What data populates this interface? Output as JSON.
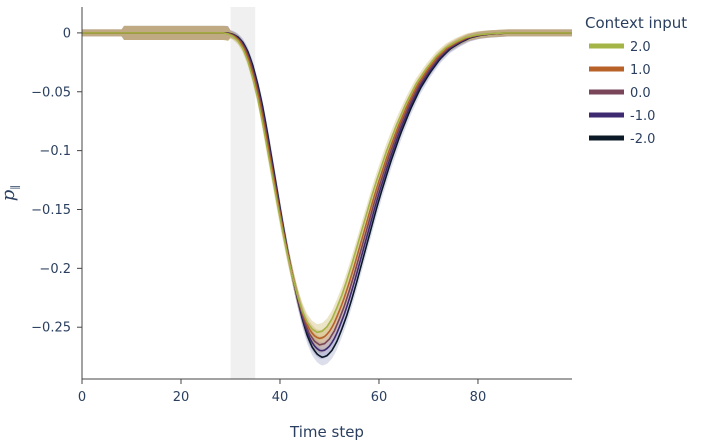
{
  "chart_data": {
    "type": "line",
    "xlabel": "Time step",
    "ylabel": "p",
    "ylabel_subscript": "∥",
    "xlim": [
      0,
      99
    ],
    "ylim": [
      -0.294,
      0.022
    ],
    "x_ticks": [
      0,
      20,
      40,
      60,
      80
    ],
    "y_ticks": [
      0,
      -0.05,
      -0.1,
      -0.15,
      -0.2,
      -0.25
    ],
    "y_tick_labels": [
      "0",
      "−0.05",
      "−0.1",
      "−0.15",
      "−0.2",
      "−0.25"
    ],
    "grid": false,
    "shaded_region": {
      "x": [
        30,
        35
      ],
      "color": "#f0f0f0"
    },
    "legend": {
      "title": "Context input",
      "placement": "right"
    },
    "base_curve": {
      "x": [
        0,
        5,
        10,
        15,
        20,
        25,
        29,
        30,
        31,
        32,
        33,
        34,
        35,
        36,
        37,
        38,
        39,
        40,
        41,
        42,
        43,
        44,
        45,
        46,
        47,
        48,
        49,
        50,
        51,
        52,
        53,
        54,
        55,
        56,
        57,
        58,
        59,
        60,
        62,
        64,
        66,
        68,
        70,
        72,
        74,
        76,
        78,
        80,
        82,
        84,
        86,
        88,
        90,
        92,
        94,
        96,
        98,
        99
      ],
      "y": [
        0,
        0,
        0,
        0,
        0,
        0,
        0,
        -0.001,
        -0.003,
        -0.007,
        -0.014,
        -0.025,
        -0.04,
        -0.058,
        -0.08,
        -0.104,
        -0.128,
        -0.152,
        -0.175,
        -0.196,
        -0.215,
        -0.232,
        -0.246,
        -0.256,
        -0.262,
        -0.265,
        -0.264,
        -0.26,
        -0.253,
        -0.243,
        -0.232,
        -0.219,
        -0.205,
        -0.19,
        -0.175,
        -0.16,
        -0.145,
        -0.131,
        -0.105,
        -0.082,
        -0.062,
        -0.045,
        -0.032,
        -0.021,
        -0.013,
        -0.008,
        -0.004,
        -0.002,
        -0.001,
        -0.0005,
        0,
        0,
        0,
        0,
        0,
        0,
        0,
        0
      ]
    },
    "series": [
      {
        "name": "2.0",
        "color": "#a4b446",
        "band_color": "#c9b15e",
        "scale": 0.96,
        "shift": -0.5
      },
      {
        "name": "1.0",
        "color": "#b8622a",
        "band_color": "#c9a15e",
        "scale": 0.98,
        "shift": -0.2
      },
      {
        "name": "0.0",
        "color": "#7a4459",
        "band_color": "#a08070",
        "scale": 1.0,
        "shift": 0.0
      },
      {
        "name": "-1.0",
        "color": "#3d2a70",
        "band_color": "#8e8cc0",
        "scale": 1.02,
        "shift": 0.2
      },
      {
        "name": "-2.0",
        "color": "#0b1a26",
        "band_color": "#9aa0c8",
        "scale": 1.04,
        "shift": 0.4
      }
    ]
  }
}
